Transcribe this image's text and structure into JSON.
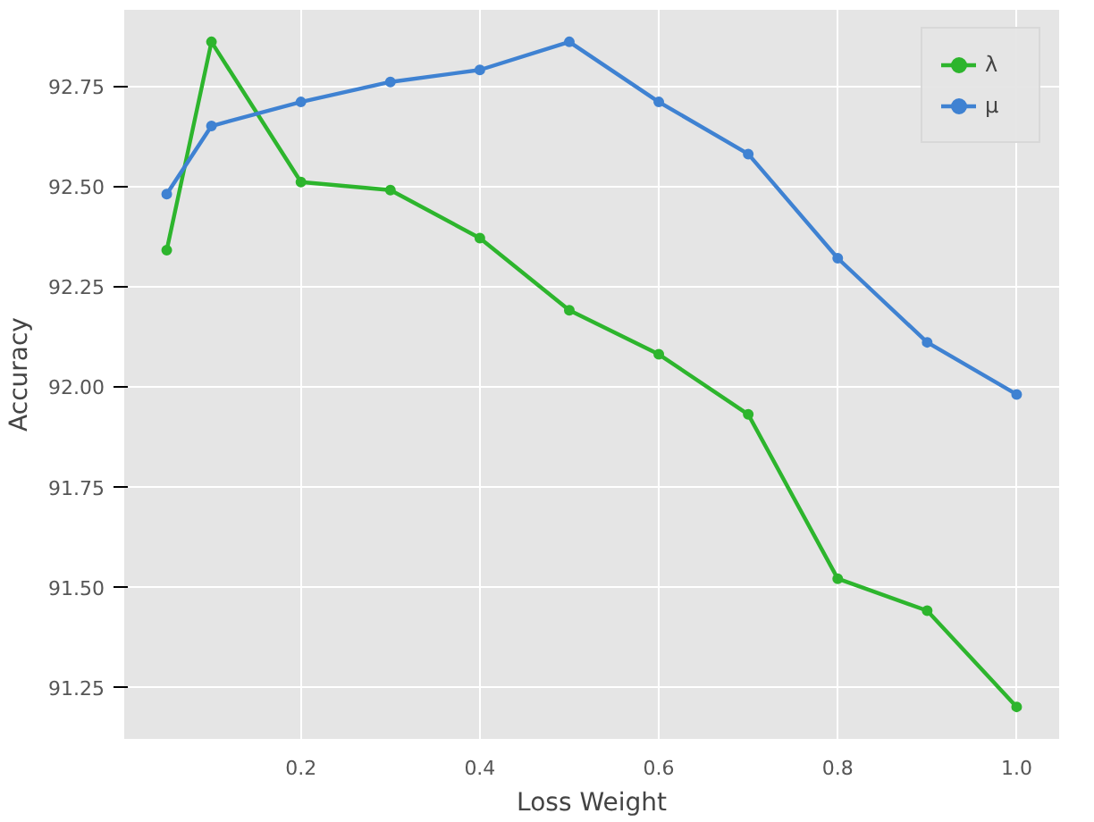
{
  "chart_data": {
    "type": "line",
    "xlabel": "Loss Weight",
    "ylabel": "Accuracy",
    "x": [
      0.05,
      0.1,
      0.2,
      0.3,
      0.4,
      0.5,
      0.6,
      0.7,
      0.8,
      0.9,
      1.0
    ],
    "series": [
      {
        "name": "λ",
        "color": "#2db52d",
        "values": [
          92.34,
          92.86,
          92.51,
          92.49,
          92.37,
          92.19,
          92.08,
          91.93,
          91.52,
          91.44,
          91.2
        ]
      },
      {
        "name": "μ",
        "color": "#3f82d2",
        "values": [
          92.48,
          92.65,
          92.71,
          92.76,
          92.79,
          92.86,
          92.71,
          92.58,
          92.32,
          92.11,
          91.98
        ]
      }
    ],
    "xlim": [
      0.0025,
      1.0475
    ],
    "ylim": [
      91.12,
      92.94
    ],
    "xticks": [
      0.2,
      0.4,
      0.6,
      0.8,
      {
        "value": 1.0,
        "label": "1.0"
      }
    ],
    "yticks": [
      91.25,
      {
        "value": 91.5,
        "label": "91.50"
      },
      91.75,
      {
        "value": 92.0,
        "label": "92.00"
      },
      92.25,
      {
        "value": 92.5,
        "label": "92.50"
      },
      92.75
    ],
    "grid": true,
    "legend": "top right",
    "marker": "circle",
    "line_style": "solid"
  }
}
